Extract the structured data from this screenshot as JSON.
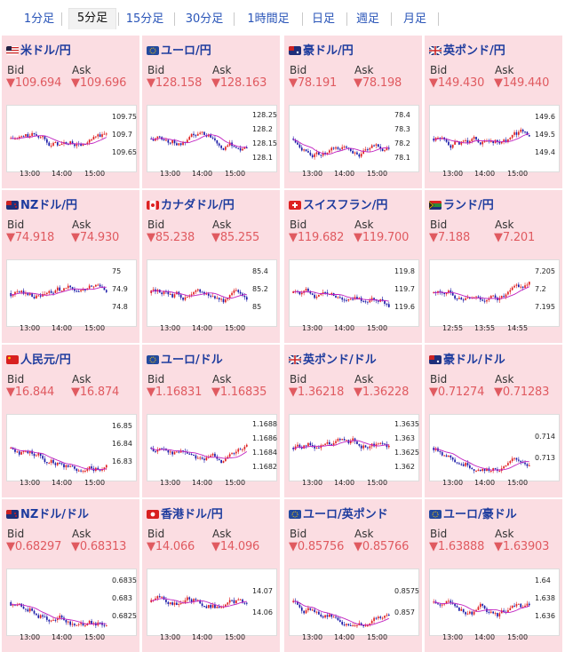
{
  "tabs": [
    {
      "label": "1分足",
      "active": false
    },
    {
      "label": "5分足",
      "active": true
    },
    {
      "label": "15分足",
      "active": false
    },
    {
      "label": "30分足",
      "active": false
    },
    {
      "label": "1時間足",
      "active": false
    },
    {
      "label": "日足",
      "active": false
    },
    {
      "label": "週足",
      "active": false
    },
    {
      "label": "月足",
      "active": false
    }
  ],
  "common": {
    "bid_label": "Bid",
    "ask_label": "Ask",
    "down_arrow": "▼"
  },
  "colors": {
    "card_bg": "#fbdde2",
    "title": "#1e3c9e",
    "price_down": "#e05a60",
    "candle_up": "#e02020",
    "candle_down": "#1a1aa8",
    "ma": "#c020c0"
  },
  "pairs": [
    {
      "name": "米ドル/円",
      "flag": "us",
      "bid": "109.694",
      "ask": "109.696",
      "yticks": [
        "109.75",
        "109.7",
        "109.65"
      ],
      "xticks": [
        "13:00",
        "14:00",
        "15:00"
      ]
    },
    {
      "name": "ユーロ/円",
      "flag": "eu",
      "bid": "128.158",
      "ask": "128.163",
      "yticks": [
        "128.25",
        "128.2",
        "128.15",
        "128.1"
      ],
      "xticks": [
        "13:00",
        "14:00",
        "15:00"
      ]
    },
    {
      "name": "豪ドル/円",
      "flag": "au",
      "bid": "78.191",
      "ask": "78.198",
      "yticks": [
        "78.4",
        "78.3",
        "78.2",
        "78.1"
      ],
      "xticks": [
        "13:00",
        "14:00",
        "15:00"
      ]
    },
    {
      "name": "英ポンド/円",
      "flag": "gb",
      "bid": "149.430",
      "ask": "149.440",
      "yticks": [
        "149.6",
        "149.5",
        "149.4"
      ],
      "xticks": [
        "13:00",
        "14:00",
        "15:00"
      ]
    },
    {
      "name": "NZドル/円",
      "flag": "nz",
      "bid": "74.918",
      "ask": "74.930",
      "yticks": [
        "75",
        "74.9",
        "74.8"
      ],
      "xticks": [
        "13:00",
        "14:00",
        "15:00"
      ]
    },
    {
      "name": "カナダドル/円",
      "flag": "ca",
      "bid": "85.238",
      "ask": "85.255",
      "yticks": [
        "85.4",
        "85.2",
        "85"
      ],
      "xticks": [
        "13:00",
        "14:00",
        "15:00"
      ]
    },
    {
      "name": "スイスフラン/円",
      "flag": "ch",
      "bid": "119.682",
      "ask": "119.700",
      "yticks": [
        "119.8",
        "119.7",
        "119.6"
      ],
      "xticks": [
        "13:00",
        "14:00",
        "15:00"
      ]
    },
    {
      "name": "ランド/円",
      "flag": "za",
      "bid": "7.188",
      "ask": "7.201",
      "yticks": [
        "7.205",
        "7.2",
        "7.195"
      ],
      "xticks": [
        "12:55",
        "13:55",
        "14:55"
      ]
    },
    {
      "name": "人民元/円",
      "flag": "cn",
      "bid": "16.844",
      "ask": "16.874",
      "yticks": [
        "16.85",
        "16.84",
        "16.83"
      ],
      "xticks": [
        "13:00",
        "14:00",
        "15:00"
      ]
    },
    {
      "name": "ユーロ/ドル",
      "flag": "eu",
      "bid": "1.16831",
      "ask": "1.16835",
      "yticks": [
        "1.1688",
        "1.1686",
        "1.1684",
        "1.1682"
      ],
      "xticks": [
        "13:00",
        "14:00",
        "15:00"
      ]
    },
    {
      "name": "英ポンド/ドル",
      "flag": "gb",
      "bid": "1.36218",
      "ask": "1.36228",
      "yticks": [
        "1.3635",
        "1.363",
        "1.3625",
        "1.362"
      ],
      "xticks": [
        "13:00",
        "14:00",
        "15:00"
      ]
    },
    {
      "name": "豪ドル/ドル",
      "flag": "au",
      "bid": "0.71274",
      "ask": "0.71283",
      "yticks": [
        "0.714",
        "0.713"
      ],
      "xticks": [
        "13:00",
        "14:00",
        "15:00"
      ]
    },
    {
      "name": "NZドル/ドル",
      "flag": "nz",
      "bid": "0.68297",
      "ask": "0.68313",
      "yticks": [
        "0.6835",
        "0.683",
        "0.6825"
      ],
      "xticks": [
        "13:00",
        "14:00",
        "15:00"
      ]
    },
    {
      "name": "香港ドル/円",
      "flag": "hk",
      "bid": "14.066",
      "ask": "14.096",
      "yticks": [
        "14.07",
        "14.06"
      ],
      "xticks": [
        "13:00",
        "14:00",
        "15:00"
      ]
    },
    {
      "name": "ユーロ/英ポンド",
      "flag": "eu",
      "bid": "0.85756",
      "ask": "0.85766",
      "yticks": [
        "0.8575",
        "0.857"
      ],
      "xticks": [
        "13:00",
        "14:00",
        "15:00"
      ]
    },
    {
      "name": "ユーロ/豪ドル",
      "flag": "eu",
      "bid": "1.63888",
      "ask": "1.63903",
      "yticks": [
        "1.64",
        "1.638",
        "1.636"
      ],
      "xticks": [
        "13:00",
        "14:00",
        "15:00"
      ]
    }
  ]
}
